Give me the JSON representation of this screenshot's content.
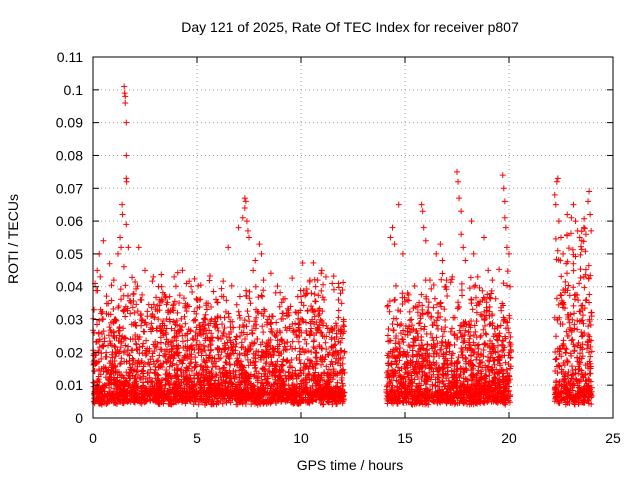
{
  "chart_data": {
    "type": "scatter",
    "title": "Day 121 of 2025, Rate Of TEC Index for receiver p807",
    "xlabel": "GPS time / hours",
    "ylabel": "ROTI / TECUs",
    "xlim": [
      0,
      25
    ],
    "ylim": [
      0,
      0.11
    ],
    "xticks": [
      0,
      5,
      10,
      15,
      20,
      25
    ],
    "yticks": [
      0,
      0.01,
      0.02,
      0.03,
      0.04,
      0.05,
      0.06,
      0.07,
      0.08,
      0.09,
      0.1,
      0.11
    ],
    "xtick_labels": [
      "0",
      "5",
      "10",
      "15",
      "20",
      "25"
    ],
    "ytick_labels": [
      "0",
      "0.01",
      "0.02",
      "0.03",
      "0.04",
      "0.05",
      "0.06",
      "0.07",
      "0.08",
      "0.09",
      "0.1",
      "0.11"
    ],
    "grid": true,
    "marker": "+",
    "series_color": "#ff0000",
    "data_segments": [
      {
        "x_range": [
          0.0,
          12.1
        ],
        "y_range": [
          0.004,
          0.045
        ]
      },
      {
        "x_range": [
          14.1,
          20.1
        ],
        "y_range": [
          0.004,
          0.045
        ]
      },
      {
        "x_range": [
          22.2,
          24.0
        ],
        "y_range": [
          0.004,
          0.06
        ]
      }
    ],
    "points": [
      [
        1.5,
        0.101
      ],
      [
        1.52,
        0.099
      ],
      [
        1.55,
        0.098
      ],
      [
        1.55,
        0.096
      ],
      [
        1.6,
        0.09
      ],
      [
        1.6,
        0.08
      ],
      [
        1.6,
        0.073
      ],
      [
        1.62,
        0.072
      ],
      [
        1.4,
        0.065
      ],
      [
        1.42,
        0.062
      ],
      [
        1.3,
        0.055
      ],
      [
        1.35,
        0.052
      ],
      [
        1.2,
        0.05
      ],
      [
        1.6,
        0.059
      ],
      [
        1.7,
        0.052
      ],
      [
        2.2,
        0.052
      ],
      [
        0.5,
        0.054
      ],
      [
        0.3,
        0.05
      ],
      [
        0.2,
        0.045
      ],
      [
        0.1,
        0.041
      ],
      [
        0.35,
        0.043
      ],
      [
        0.05,
        0.033
      ],
      [
        0.8,
        0.047
      ],
      [
        1.0,
        0.042
      ],
      [
        2.5,
        0.045
      ],
      [
        2.9,
        0.043
      ],
      [
        3.3,
        0.04
      ],
      [
        3.9,
        0.043
      ],
      [
        4.3,
        0.045
      ],
      [
        4.5,
        0.041
      ],
      [
        5.1,
        0.036
      ],
      [
        6.0,
        0.031
      ],
      [
        6.5,
        0.052
      ],
      [
        7.0,
        0.058
      ],
      [
        7.2,
        0.061
      ],
      [
        7.3,
        0.064
      ],
      [
        7.3,
        0.067
      ],
      [
        7.35,
        0.066
      ],
      [
        7.4,
        0.06
      ],
      [
        7.45,
        0.057
      ],
      [
        7.5,
        0.055
      ],
      [
        7.7,
        0.045
      ],
      [
        7.8,
        0.048
      ],
      [
        8.0,
        0.053
      ],
      [
        8.1,
        0.05
      ],
      [
        8.2,
        0.042
      ],
      [
        8.6,
        0.031
      ],
      [
        9.0,
        0.026
      ],
      [
        9.5,
        0.034
      ],
      [
        10.0,
        0.037
      ],
      [
        10.3,
        0.038
      ],
      [
        10.5,
        0.038
      ],
      [
        10.8,
        0.042
      ],
      [
        11.0,
        0.045
      ],
      [
        11.2,
        0.043
      ],
      [
        11.5,
        0.041
      ],
      [
        11.8,
        0.041
      ],
      [
        11.9,
        0.038
      ],
      [
        12.0,
        0.039
      ],
      [
        12.05,
        0.03
      ],
      [
        14.3,
        0.055
      ],
      [
        14.4,
        0.058
      ],
      [
        14.5,
        0.053
      ],
      [
        14.7,
        0.065
      ],
      [
        14.9,
        0.05
      ],
      [
        15.1,
        0.036
      ],
      [
        15.3,
        0.03
      ],
      [
        15.8,
        0.065
      ],
      [
        15.85,
        0.063
      ],
      [
        15.9,
        0.058
      ],
      [
        16.0,
        0.054
      ],
      [
        16.2,
        0.042
      ],
      [
        16.5,
        0.05
      ],
      [
        16.7,
        0.053
      ],
      [
        16.8,
        0.048
      ],
      [
        17.0,
        0.042
      ],
      [
        17.5,
        0.075
      ],
      [
        17.55,
        0.072
      ],
      [
        17.6,
        0.067
      ],
      [
        17.7,
        0.063
      ],
      [
        17.7,
        0.056
      ],
      [
        17.8,
        0.052
      ],
      [
        17.9,
        0.048
      ],
      [
        18.2,
        0.06
      ],
      [
        18.3,
        0.05
      ],
      [
        18.5,
        0.043
      ],
      [
        18.8,
        0.055
      ],
      [
        19.0,
        0.045
      ],
      [
        19.2,
        0.042
      ],
      [
        19.7,
        0.074
      ],
      [
        19.75,
        0.07
      ],
      [
        19.8,
        0.066
      ],
      [
        19.8,
        0.061
      ],
      [
        19.85,
        0.058
      ],
      [
        19.9,
        0.052
      ],
      [
        20.0,
        0.05
      ],
      [
        20.05,
        0.04
      ],
      [
        22.2,
        0.068
      ],
      [
        22.25,
        0.065
      ],
      [
        22.3,
        0.072
      ],
      [
        22.35,
        0.073
      ],
      [
        22.4,
        0.06
      ],
      [
        22.5,
        0.055
      ],
      [
        22.6,
        0.05
      ],
      [
        22.8,
        0.062
      ],
      [
        23.0,
        0.061
      ],
      [
        23.1,
        0.065
      ],
      [
        23.2,
        0.06
      ],
      [
        23.3,
        0.057
      ],
      [
        23.4,
        0.055
      ],
      [
        23.5,
        0.054
      ],
      [
        23.6,
        0.058
      ],
      [
        23.7,
        0.056
      ],
      [
        23.8,
        0.066
      ],
      [
        23.85,
        0.069
      ],
      [
        23.9,
        0.062
      ],
      [
        23.95,
        0.057
      ]
    ]
  }
}
